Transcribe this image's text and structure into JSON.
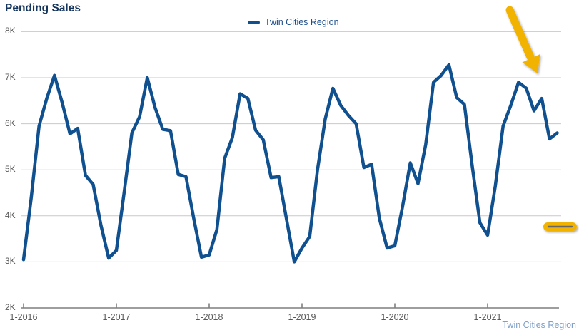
{
  "title": "Pending Sales",
  "legend": {
    "label": "Twin Cities Region"
  },
  "footer": {
    "region_label": "Twin Cities Region"
  },
  "y_axis": {
    "labels": [
      "8K",
      "7K",
      "6K",
      "5K",
      "4K",
      "3K",
      "2K"
    ]
  },
  "x_axis": {
    "labels": [
      "1-2016",
      "1-2017",
      "1-2018",
      "1-2019",
      "1-2020",
      "1-2021"
    ]
  },
  "colors": {
    "line_blue": "#10508F",
    "title_navy": "#17365D",
    "axis_text_gray": "#595959",
    "gridline_gray": "#C9C9C9",
    "axis_line_gray": "#7F7F7F",
    "footer_link_blue": "#7D9EC8",
    "accent_yellow": "#F2B205"
  },
  "annotations": {
    "arrow": "yellow-down-right-arrow pointing at late-2021 decline",
    "highlight_dash": "yellow highlighted horizontal dash near 3.7K right margin"
  },
  "chart_data": {
    "type": "line",
    "title": "Pending Sales",
    "legend_position": "top-center",
    "grid": "horizontal-only",
    "ylim": [
      2000,
      8000
    ],
    "y_tick_labels": [
      "2K",
      "3K",
      "4K",
      "5K",
      "6K",
      "7K",
      "8K"
    ],
    "x_tick_labels": [
      "1-2016",
      "1-2017",
      "1-2018",
      "1-2019",
      "1-2020",
      "1-2021"
    ],
    "x": [
      "1-2016",
      "2-2016",
      "3-2016",
      "4-2016",
      "5-2016",
      "6-2016",
      "7-2016",
      "8-2016",
      "9-2016",
      "10-2016",
      "11-2016",
      "12-2016",
      "1-2017",
      "2-2017",
      "3-2017",
      "4-2017",
      "5-2017",
      "6-2017",
      "7-2017",
      "8-2017",
      "9-2017",
      "10-2017",
      "11-2017",
      "12-2017",
      "1-2018",
      "2-2018",
      "3-2018",
      "4-2018",
      "5-2018",
      "6-2018",
      "7-2018",
      "8-2018",
      "9-2018",
      "10-2018",
      "11-2018",
      "12-2018",
      "1-2019",
      "2-2019",
      "3-2019",
      "4-2019",
      "5-2019",
      "6-2019",
      "7-2019",
      "8-2019",
      "9-2019",
      "10-2019",
      "11-2019",
      "12-2019",
      "1-2020",
      "2-2020",
      "3-2020",
      "4-2020",
      "5-2020",
      "6-2020",
      "7-2020",
      "8-2020",
      "9-2020",
      "10-2020",
      "11-2020",
      "12-2020",
      "1-2021",
      "2-2021",
      "3-2021",
      "4-2021",
      "5-2021",
      "6-2021",
      "7-2021",
      "8-2021",
      "9-2021",
      "10-2021"
    ],
    "series": [
      {
        "name": "Twin Cities Region",
        "values": [
          3050,
          4400,
          5950,
          6550,
          7050,
          6450,
          5780,
          5900,
          4880,
          4680,
          3800,
          3080,
          3250,
          4500,
          5800,
          6150,
          7000,
          6350,
          5880,
          5850,
          4900,
          4850,
          3950,
          3100,
          3150,
          3700,
          5250,
          5700,
          6650,
          6550,
          5860,
          5650,
          4830,
          4850,
          3930,
          3000,
          3300,
          3550,
          5000,
          6100,
          6770,
          6400,
          6180,
          6000,
          5050,
          5120,
          3950,
          3300,
          3350,
          4200,
          5150,
          4700,
          5550,
          6900,
          7050,
          7280,
          6570,
          6420,
          5100,
          3850,
          3580,
          4650,
          5950,
          6400,
          6900,
          6770,
          6280,
          6550,
          5670,
          5800
        ]
      }
    ]
  }
}
